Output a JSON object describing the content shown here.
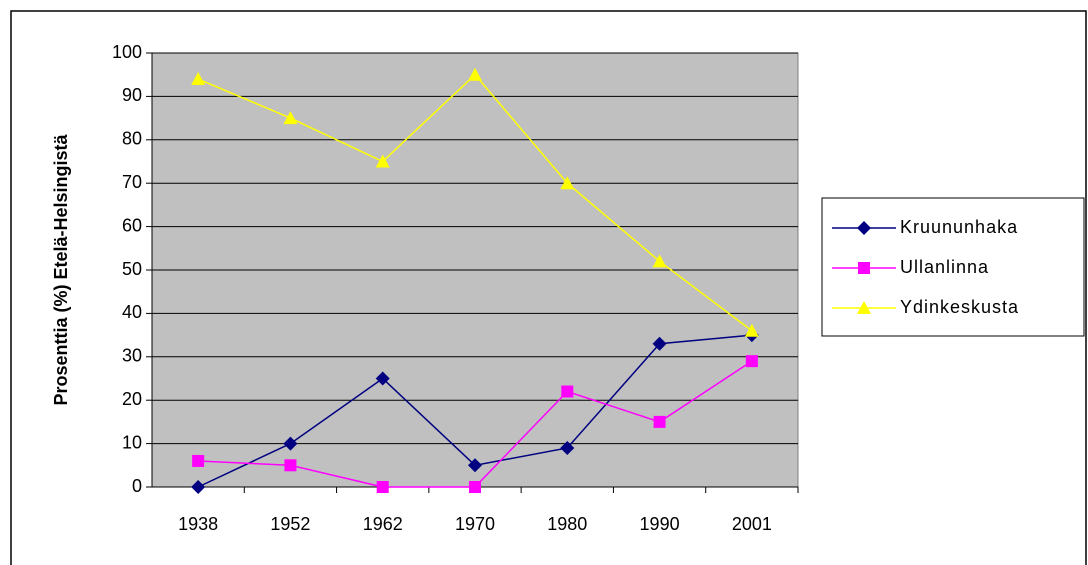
{
  "chart_data": {
    "type": "line",
    "ylabel": "Prosenttia (%) Etelä-Helsingistä",
    "categories": [
      "1938",
      "1952",
      "1962",
      "1970",
      "1980",
      "1990",
      "2001"
    ],
    "series": [
      {
        "name": "Kruununhaka",
        "color": "#000080",
        "marker": "diamond",
        "values": [
          0,
          10,
          25,
          5,
          9,
          33,
          35
        ]
      },
      {
        "name": "Ullanlinna",
        "color": "#ff00ff",
        "marker": "square",
        "values": [
          6,
          5,
          0,
          0,
          22,
          15,
          29
        ]
      },
      {
        "name": "Ydinkeskusta",
        "color": "#ffff00",
        "marker": "triangle",
        "values": [
          94,
          85,
          75,
          95,
          70,
          52,
          36
        ]
      }
    ],
    "ylim": [
      0,
      100
    ],
    "yticks": [
      0,
      10,
      20,
      30,
      40,
      50,
      60,
      70,
      80,
      90,
      100
    ],
    "grid": true,
    "legend": "right",
    "plot_background": "#c0c0c0"
  }
}
